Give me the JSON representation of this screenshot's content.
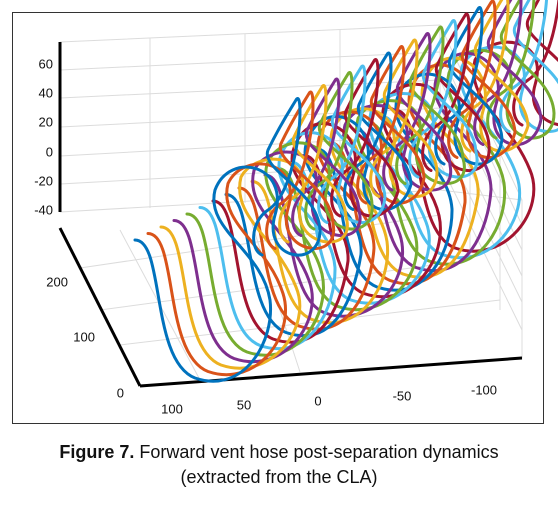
{
  "figure": {
    "z_ticks": [
      "60",
      "40",
      "20",
      "0",
      "-20",
      "-40"
    ],
    "y_ticks": [
      "200",
      "100",
      "0"
    ],
    "x_ticks": [
      "100",
      "50",
      "0",
      "-50",
      "-100"
    ]
  },
  "caption": {
    "label": "Figure 7.",
    "text": "Forward vent hose post-separation dynamics (extracted from the CLA)"
  }
}
